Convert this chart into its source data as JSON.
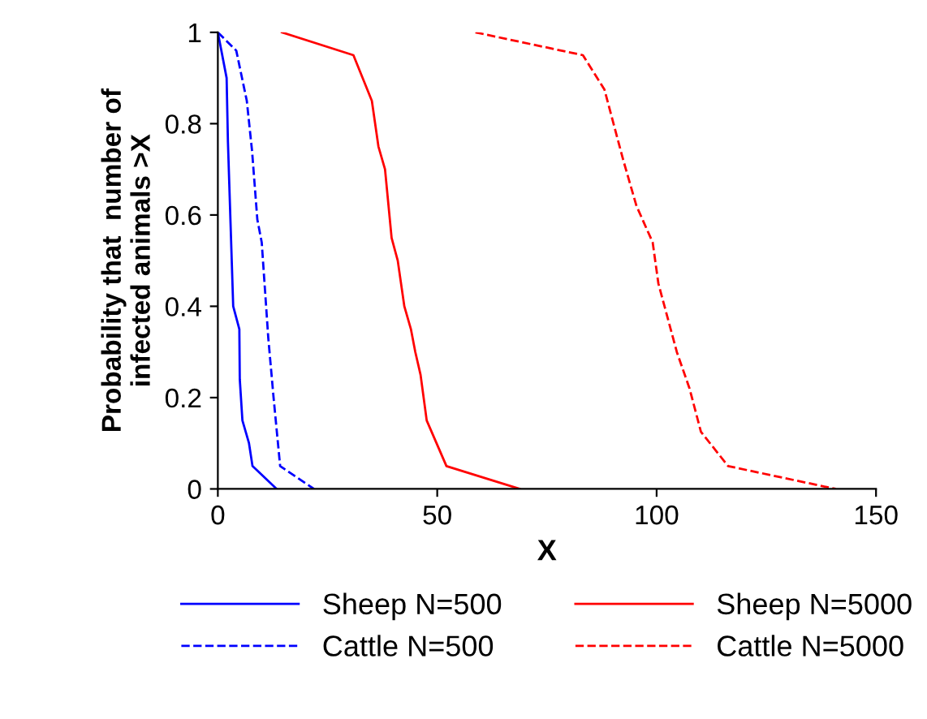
{
  "chart_data": {
    "type": "line",
    "xlabel": "X",
    "ylabel": "Probability that  number of\ninfected animals >X",
    "xlim": [
      0,
      150
    ],
    "xticks": [
      0,
      50,
      100,
      150
    ],
    "ylim": [
      0,
      1
    ],
    "yticks": [
      0,
      0.2,
      0.4,
      0.6,
      0.8,
      1
    ],
    "grid": false,
    "legend": "bottom",
    "marker": "none",
    "series": [
      {
        "name": "Sheep N=500",
        "color": "#0000ff",
        "line_style": "solid",
        "x": [
          0,
          2,
          2.3,
          3.5,
          4.9,
          5,
          5.6,
          7.1,
          7.9,
          13.4
        ],
        "values": [
          1,
          0.9,
          0.76,
          0.4,
          0.35,
          0.24,
          0.15,
          0.1,
          0.05,
          0
        ]
      },
      {
        "name": "Sheep N=5000",
        "color": "#ff0000",
        "line_style": "solid",
        "x": [
          14.6,
          30.9,
          35.1,
          36.6,
          38.1,
          39.6,
          41,
          42.5,
          44,
          45,
          46.2,
          47.6,
          52.1,
          68.8
        ],
        "values": [
          1,
          0.95,
          0.85,
          0.75,
          0.7,
          0.55,
          0.5,
          0.4,
          0.35,
          0.3,
          0.25,
          0.15,
          0.05,
          0
        ]
      },
      {
        "name": "Cattle N=500",
        "color": "#0000ff",
        "line_style": "dashed",
        "x": [
          0,
          4.2,
          6.6,
          7.8,
          9,
          10,
          11.5,
          12.7,
          14.2,
          21.9
        ],
        "values": [
          1,
          0.96,
          0.85,
          0.74,
          0.59,
          0.54,
          0.33,
          0.2,
          0.05,
          0
        ]
      },
      {
        "name": "Cattle N=5000",
        "color": "#ff0000",
        "line_style": "dashed",
        "x": [
          58.7,
          83.2,
          88.1,
          92.4,
          95.4,
          99.1,
          100.4,
          104.6,
          107.5,
          110.1,
          116.3,
          140.8
        ],
        "values": [
          1,
          0.95,
          0.875,
          0.72,
          0.62,
          0.54,
          0.45,
          0.3,
          0.22,
          0.125,
          0.05,
          0
        ]
      }
    ]
  }
}
